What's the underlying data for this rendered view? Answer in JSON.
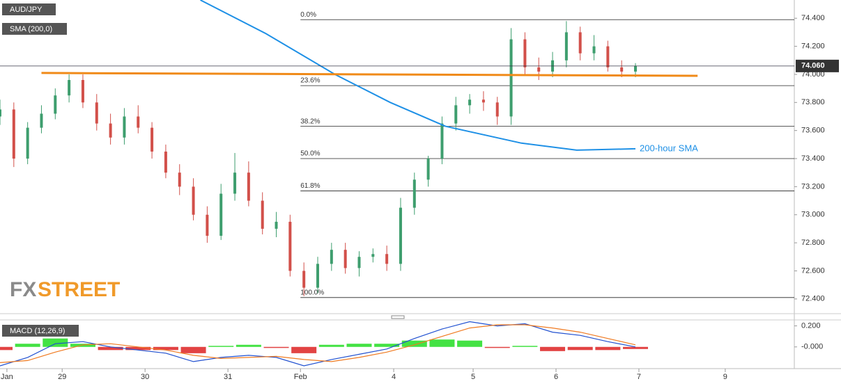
{
  "chart_data": {
    "type": "candlestick",
    "symbol": "AUD/JPY",
    "indicator": "SMA (200,0)",
    "up_color": "#3e9e6e",
    "down_color": "#d2504a",
    "xlim": [
      0,
      230
    ],
    "xticks": [
      {
        "value": 2,
        "label": "Jan"
      },
      {
        "value": 18,
        "label": "29"
      },
      {
        "value": 42,
        "label": "30"
      },
      {
        "value": 66,
        "label": "31"
      },
      {
        "value": 87,
        "label": "Feb"
      },
      {
        "value": 114,
        "label": "4"
      },
      {
        "value": 137,
        "label": "5"
      },
      {
        "value": 161,
        "label": "6"
      },
      {
        "value": 185,
        "label": "7"
      },
      {
        "value": 210,
        "label": "9"
      }
    ],
    "ylim": [
      72.3,
      74.53
    ],
    "yticks": [
      {
        "value": 74.4,
        "label": "74.400"
      },
      {
        "value": 74.2,
        "label": "74.200"
      },
      {
        "value": 74.0,
        "label": "74.000"
      },
      {
        "value": 73.8,
        "label": "73.800"
      },
      {
        "value": 73.6,
        "label": "73.600"
      },
      {
        "value": 73.4,
        "label": "73.400"
      },
      {
        "value": 73.2,
        "label": "73.200"
      },
      {
        "value": 73.0,
        "label": "73.000"
      },
      {
        "value": 72.8,
        "label": "72.800"
      },
      {
        "value": 72.6,
        "label": "72.600"
      },
      {
        "value": 72.4,
        "label": "72.400"
      }
    ],
    "x": [
      0,
      4,
      8,
      12,
      16,
      20,
      24,
      28,
      32,
      36,
      40,
      44,
      48,
      52,
      56,
      60,
      64,
      68,
      72,
      76,
      80,
      84,
      88,
      92,
      96,
      100,
      104,
      108,
      112,
      116,
      120,
      124,
      128,
      132,
      136,
      140,
      144,
      148,
      152,
      156,
      160,
      164,
      168,
      172,
      176,
      180,
      184
    ],
    "open": [
      73.7,
      73.75,
      73.4,
      73.62,
      73.72,
      73.85,
      73.96,
      73.8,
      73.65,
      73.55,
      73.7,
      73.62,
      73.45,
      73.3,
      73.2,
      73.0,
      72.85,
      73.15,
      73.3,
      73.1,
      72.9,
      72.95,
      72.6,
      72.48,
      72.65,
      72.75,
      72.62,
      72.7,
      72.72,
      72.65,
      73.05,
      73.25,
      73.4,
      73.65,
      73.78,
      73.82,
      73.8,
      73.7,
      74.25,
      74.05,
      74.02,
      74.1,
      74.3,
      74.15,
      74.2,
      74.05,
      74.02
    ],
    "high": [
      73.82,
      73.8,
      73.66,
      73.78,
      73.9,
      74.0,
      74.0,
      73.86,
      73.72,
      73.76,
      73.78,
      73.66,
      73.5,
      73.36,
      73.26,
      73.06,
      73.22,
      73.44,
      73.38,
      73.16,
      73.02,
      73.0,
      72.66,
      72.7,
      72.8,
      72.8,
      72.74,
      72.76,
      72.78,
      73.12,
      73.3,
      73.42,
      73.7,
      73.84,
      73.86,
      73.88,
      73.84,
      74.33,
      74.3,
      74.12,
      74.16,
      74.38,
      74.34,
      74.28,
      74.24,
      74.1,
      74.08
    ],
    "low": [
      73.64,
      73.34,
      73.36,
      73.58,
      73.68,
      73.8,
      73.76,
      73.6,
      73.5,
      73.5,
      73.58,
      73.4,
      73.26,
      73.14,
      72.96,
      72.8,
      72.82,
      73.1,
      73.06,
      72.86,
      72.84,
      72.56,
      72.42,
      72.44,
      72.6,
      72.58,
      72.56,
      72.66,
      72.6,
      72.6,
      73.0,
      73.2,
      73.36,
      73.6,
      73.72,
      73.74,
      73.64,
      73.64,
      74.0,
      73.96,
      73.98,
      74.05,
      74.1,
      74.1,
      74.02,
      73.98,
      73.98
    ],
    "close": [
      73.75,
      73.4,
      73.62,
      73.72,
      73.85,
      73.96,
      73.8,
      73.65,
      73.55,
      73.7,
      73.62,
      73.45,
      73.3,
      73.2,
      73.0,
      72.85,
      73.15,
      73.3,
      73.1,
      72.9,
      72.95,
      72.6,
      72.48,
      72.65,
      72.75,
      72.62,
      72.7,
      72.72,
      72.65,
      73.05,
      73.25,
      73.4,
      73.65,
      73.78,
      73.82,
      73.8,
      73.7,
      74.25,
      74.05,
      74.02,
      74.1,
      74.3,
      74.15,
      74.2,
      74.05,
      74.02,
      74.06
    ],
    "last_price": {
      "value": 74.06,
      "label": "74.060"
    },
    "sma": {
      "name": "200-hour SMA",
      "color": "#1e90e6",
      "x": [
        58,
        77,
        97,
        113,
        129,
        151,
        167,
        184
      ],
      "values": [
        74.53,
        74.29,
        74.0,
        73.8,
        73.63,
        73.51,
        73.46,
        73.47
      ]
    },
    "support": {
      "color": "#f08a18",
      "x": [
        12,
        202
      ],
      "values": [
        74.01,
        73.99
      ]
    },
    "fibonacci": {
      "x_start": 87,
      "levels": [
        {
          "value": 74.39,
          "label": "0.0%"
        },
        {
          "value": 73.92,
          "label": "23.6%"
        },
        {
          "value": 73.63,
          "label": "38.2%"
        },
        {
          "value": 73.4,
          "label": "50.0%"
        },
        {
          "value": 73.17,
          "label": "61.8%"
        },
        {
          "value": 72.41,
          "label": "100.0%"
        }
      ]
    },
    "logo": [
      "FX",
      "STREET"
    ],
    "macd": {
      "name": "MACD (12,26,9)",
      "ylim": [
        -0.2,
        0.25
      ],
      "yticks": [
        {
          "value": 0.2,
          "label": "0.200"
        },
        {
          "value": 0,
          "label": "-0.000"
        }
      ],
      "x": [
        0,
        8,
        16,
        24,
        32,
        40,
        48,
        56,
        64,
        72,
        80,
        88,
        96,
        104,
        112,
        120,
        128,
        136,
        144,
        152,
        160,
        168,
        176,
        184
      ],
      "macd_color": "#2050d0",
      "signal_color": "#f07a20",
      "macd": [
        -0.18,
        -0.1,
        0.03,
        0.05,
        0.0,
        -0.03,
        -0.06,
        -0.14,
        -0.1,
        -0.08,
        -0.1,
        -0.18,
        -0.12,
        -0.07,
        -0.02,
        0.08,
        0.17,
        0.24,
        0.2,
        0.22,
        0.14,
        0.11,
        0.05,
        0.0
      ],
      "signal": [
        -0.15,
        -0.13,
        -0.05,
        0.02,
        0.03,
        0.0,
        -0.03,
        -0.08,
        -0.11,
        -0.1,
        -0.09,
        -0.12,
        -0.14,
        -0.1,
        -0.05,
        0.02,
        0.1,
        0.18,
        0.21,
        0.21,
        0.18,
        0.14,
        0.08,
        0.02
      ],
      "histogram": [
        -0.03,
        0.03,
        0.08,
        0.03,
        -0.03,
        -0.03,
        -0.03,
        -0.06,
        0.01,
        0.02,
        -0.01,
        -0.06,
        0.02,
        0.03,
        0.03,
        0.06,
        0.07,
        0.06,
        -0.01,
        0.01,
        -0.04,
        -0.03,
        -0.03,
        -0.02
      ],
      "hist_up_color": "#22dd22",
      "hist_down_color": "#dd2222"
    }
  }
}
